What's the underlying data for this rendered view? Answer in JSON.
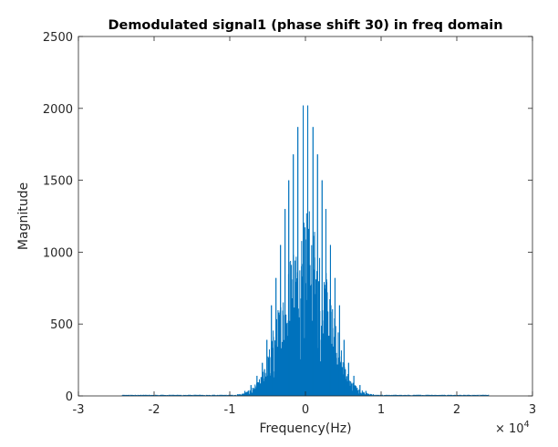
{
  "chart_data": {
    "type": "line",
    "title": "Demodulated signal1 (phase shift 30) in freq domain",
    "xlabel": "Frequency(Hz)",
    "ylabel": "Magnitude",
    "xlim": [
      -30000,
      30000
    ],
    "ylim": [
      0,
      2500
    ],
    "x_tick_values": [
      -30000,
      -20000,
      -10000,
      0,
      10000,
      20000,
      30000
    ],
    "x_tick_labels": [
      "-3",
      "-2",
      "-1",
      "0",
      "1",
      "2",
      "3"
    ],
    "y_tick_values": [
      0,
      500,
      1000,
      1500,
      2000,
      2500
    ],
    "y_tick_labels": [
      "0",
      "500",
      "1000",
      "1500",
      "2000",
      "2500"
    ],
    "x_exponent_base": "× 10",
    "x_exponent_power": "4",
    "grid": false,
    "legend": "none",
    "series_color": "#0072BD",
    "peaks": [
      {
        "x": -300,
        "y": 2020
      },
      {
        "x": 300,
        "y": 2020
      },
      {
        "x": -1000,
        "y": 1870
      },
      {
        "x": 1000,
        "y": 1870
      },
      {
        "x": -1600,
        "y": 1680
      },
      {
        "x": 1600,
        "y": 1680
      },
      {
        "x": -2200,
        "y": 1500
      },
      {
        "x": 2200,
        "y": 1500
      },
      {
        "x": -2700,
        "y": 1300
      },
      {
        "x": 2700,
        "y": 1300
      },
      {
        "x": -3300,
        "y": 1050
      },
      {
        "x": 3300,
        "y": 1050
      },
      {
        "x": -3900,
        "y": 820
      },
      {
        "x": 3900,
        "y": 820
      },
      {
        "x": -4500,
        "y": 630
      },
      {
        "x": 4500,
        "y": 630
      },
      {
        "x": -5100,
        "y": 390
      },
      {
        "x": 5100,
        "y": 390
      },
      {
        "x": -5700,
        "y": 230
      },
      {
        "x": 5700,
        "y": 230
      },
      {
        "x": -6400,
        "y": 140
      },
      {
        "x": 6400,
        "y": 140
      },
      {
        "x": -7200,
        "y": 75
      },
      {
        "x": 7200,
        "y": 75
      },
      {
        "x": -8000,
        "y": 35
      },
      {
        "x": 8000,
        "y": 35
      }
    ]
  }
}
